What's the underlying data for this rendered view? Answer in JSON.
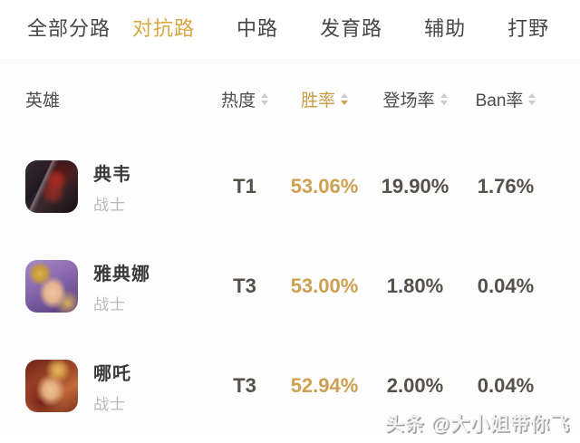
{
  "tab_bar": {
    "tabs": [
      {
        "label": "全部分路",
        "active": false
      },
      {
        "label": "对抗路",
        "active": true
      },
      {
        "label": "中路",
        "active": false
      },
      {
        "label": "发育路",
        "active": false
      },
      {
        "label": "辅助",
        "active": false
      },
      {
        "label": "打野",
        "active": false
      }
    ]
  },
  "table": {
    "header": {
      "hero": "英雄",
      "heat": "热度",
      "win_rate": "胜率",
      "pick_rate": "登场率",
      "ban_rate": "Ban率",
      "sorted_by": "胜率",
      "sort_direction": "desc"
    },
    "rows": [
      {
        "name": "典韦",
        "role": "战士",
        "tier": "T1",
        "win_rate": "53.06%",
        "pick_rate": "19.90%",
        "ban_rate": "1.76%",
        "avatar": "dianwei-avatar"
      },
      {
        "name": "雅典娜",
        "role": "战士",
        "tier": "T3",
        "win_rate": "53.00%",
        "pick_rate": "1.80%",
        "ban_rate": "0.04%",
        "avatar": "yadianna-avatar"
      },
      {
        "name": "哪吒",
        "role": "战士",
        "tier": "T3",
        "win_rate": "52.94%",
        "pick_rate": "2.00%",
        "ban_rate": "0.04%",
        "avatar": "nezha-avatar"
      }
    ]
  },
  "watermark": "头条 @大小姐带你飞",
  "colors": {
    "accent_gold_value": "#CDA052",
    "active_tab_gold": "#D8A843",
    "header_gold": "#C89C45",
    "text_dark": "#3A3A3A",
    "text_gray": "#B9B9B9",
    "value_dark": "#55504A"
  },
  "icons": {
    "sort": "sort-updown-triangles"
  }
}
